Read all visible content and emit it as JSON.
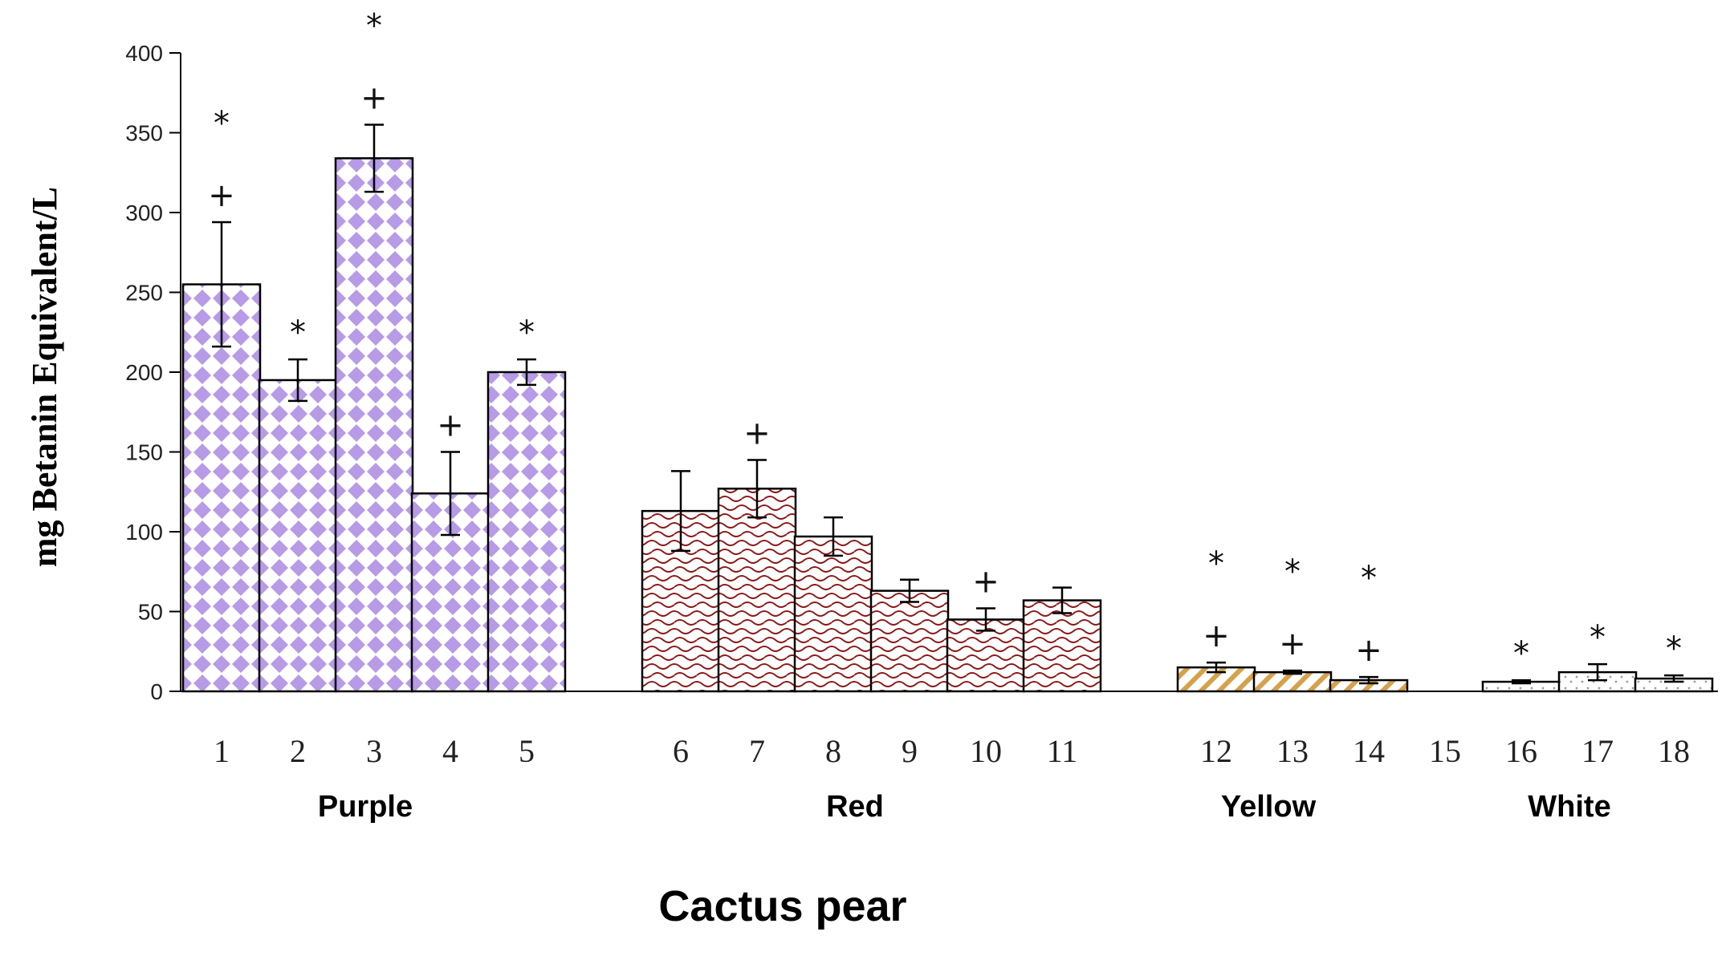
{
  "chart_data": {
    "type": "bar",
    "title": "",
    "xlabel": "Cactus pear",
    "ylabel": "mg Betanin Equivalent/L",
    "ylim": [
      0,
      400
    ],
    "yticks": [
      0,
      50,
      100,
      150,
      200,
      250,
      300,
      350,
      400
    ],
    "grid": false,
    "categories": [
      "1",
      "2",
      "3",
      "4",
      "5",
      "6",
      "7",
      "8",
      "9",
      "10",
      "11",
      "12",
      "13",
      "14",
      "15",
      "16",
      "17",
      "18"
    ],
    "values": [
      255,
      195,
      334,
      124,
      200,
      113,
      127,
      97,
      63,
      45,
      57,
      15,
      12,
      7,
      0,
      6,
      12,
      8
    ],
    "errors": [
      39,
      13,
      21,
      26,
      8,
      25,
      18,
      12,
      7,
      7,
      8,
      3,
      1,
      2,
      0,
      1,
      5,
      2
    ],
    "groups": [
      {
        "name": "Purple",
        "categories": [
          "1",
          "2",
          "3",
          "4",
          "5"
        ],
        "color": "#b79be6",
        "pattern": "diamond"
      },
      {
        "name": "Red",
        "categories": [
          "6",
          "7",
          "8",
          "9",
          "10",
          "11"
        ],
        "color": "#8b1a1a",
        "pattern": "wave"
      },
      {
        "name": "Yellow",
        "categories": [
          "12",
          "13",
          "14",
          "15"
        ],
        "color": "#d4a24a",
        "pattern": "diagonal"
      },
      {
        "name": "White",
        "categories": [
          "16",
          "17",
          "18"
        ],
        "color": "#9aa0a6",
        "pattern": "dots"
      }
    ],
    "annotations": [
      {
        "category": "1",
        "symbols": [
          "*",
          "+"
        ]
      },
      {
        "category": "2",
        "symbols": [
          "*"
        ]
      },
      {
        "category": "3",
        "symbols": [
          "*",
          "+"
        ]
      },
      {
        "category": "4",
        "symbols": [
          "+"
        ]
      },
      {
        "category": "5",
        "symbols": [
          "*"
        ]
      },
      {
        "category": "7",
        "symbols": [
          "+"
        ]
      },
      {
        "category": "10",
        "symbols": [
          "+"
        ]
      },
      {
        "category": "12",
        "symbols": [
          "*",
          "+"
        ]
      },
      {
        "category": "13",
        "symbols": [
          "*",
          "+"
        ]
      },
      {
        "category": "14",
        "symbols": [
          "*",
          "+"
        ]
      },
      {
        "category": "16",
        "symbols": [
          "*"
        ]
      },
      {
        "category": "17",
        "symbols": [
          "*"
        ]
      },
      {
        "category": "18",
        "symbols": [
          "*"
        ]
      }
    ]
  }
}
